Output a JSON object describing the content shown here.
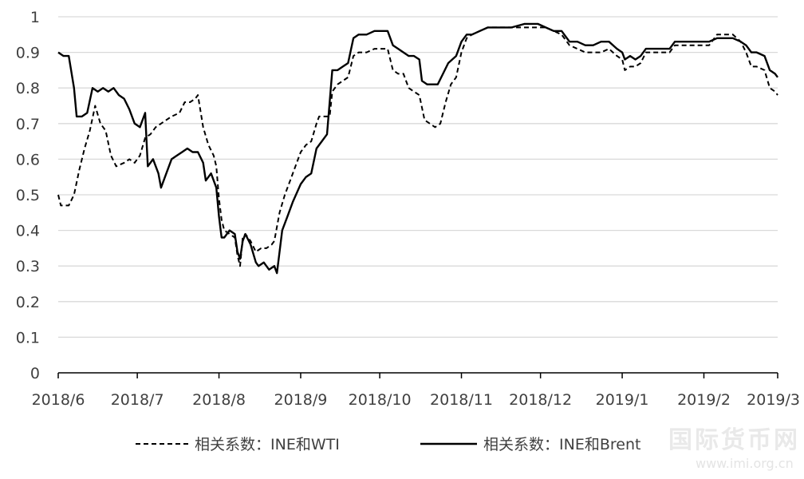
{
  "chart_data": {
    "type": "line",
    "title": "",
    "xlabel": "",
    "ylabel": "",
    "ylim": [
      0,
      1
    ],
    "yticks": [
      "0",
      "0.1",
      "0.2",
      "0.3",
      "0.4",
      "0.5",
      "0.6",
      "0.7",
      "0.8",
      "0.9",
      "1"
    ],
    "xticks": [
      "2018/6",
      "2018/7",
      "2018/8",
      "2018/9",
      "2018/10",
      "2018/11",
      "2018/12",
      "2019/1",
      "2019/2",
      "2019/3"
    ],
    "grid": "horizontal",
    "legend_position": "bottom",
    "series": [
      {
        "name": "相关系数：INE和WTI",
        "style": "dashed",
        "color": "#000000",
        "points": [
          [
            "2018-06-01",
            0.5
          ],
          [
            "2018-06-02",
            0.47
          ],
          [
            "2018-06-05",
            0.47
          ],
          [
            "2018-06-07",
            0.5
          ],
          [
            "2018-06-09",
            0.57
          ],
          [
            "2018-06-11",
            0.63
          ],
          [
            "2018-06-13",
            0.68
          ],
          [
            "2018-06-15",
            0.75
          ],
          [
            "2018-06-17",
            0.7
          ],
          [
            "2018-06-19",
            0.68
          ],
          [
            "2018-06-21",
            0.61
          ],
          [
            "2018-06-23",
            0.58
          ],
          [
            "2018-06-26",
            0.59
          ],
          [
            "2018-06-28",
            0.6
          ],
          [
            "2018-06-30",
            0.59
          ],
          [
            "2018-07-02",
            0.61
          ],
          [
            "2018-07-04",
            0.66
          ],
          [
            "2018-07-06",
            0.67
          ],
          [
            "2018-07-08",
            0.69
          ],
          [
            "2018-07-10",
            0.7
          ],
          [
            "2018-07-12",
            0.71
          ],
          [
            "2018-07-14",
            0.72
          ],
          [
            "2018-07-17",
            0.73
          ],
          [
            "2018-07-19",
            0.76
          ],
          [
            "2018-07-21",
            0.76
          ],
          [
            "2018-07-23",
            0.77
          ],
          [
            "2018-07-24",
            0.78
          ],
          [
            "2018-07-26",
            0.69
          ],
          [
            "2018-07-28",
            0.64
          ],
          [
            "2018-07-30",
            0.61
          ],
          [
            "2018-07-31",
            0.58
          ],
          [
            "2018-08-01",
            0.49
          ],
          [
            "2018-08-02",
            0.43
          ],
          [
            "2018-08-03",
            0.4
          ],
          [
            "2018-08-05",
            0.39
          ],
          [
            "2018-08-07",
            0.38
          ],
          [
            "2018-08-08",
            0.33
          ],
          [
            "2018-08-09",
            0.3
          ],
          [
            "2018-08-10",
            0.38
          ],
          [
            "2018-08-11",
            0.39
          ],
          [
            "2018-08-13",
            0.37
          ],
          [
            "2018-08-15",
            0.34
          ],
          [
            "2018-08-17",
            0.35
          ],
          [
            "2018-08-19",
            0.35
          ],
          [
            "2018-08-21",
            0.36
          ],
          [
            "2018-08-22",
            0.37
          ],
          [
            "2018-08-24",
            0.45
          ],
          [
            "2018-08-26",
            0.5
          ],
          [
            "2018-08-28",
            0.54
          ],
          [
            "2018-08-30",
            0.58
          ],
          [
            "2018-09-01",
            0.62
          ],
          [
            "2018-09-03",
            0.64
          ],
          [
            "2018-09-05",
            0.65
          ],
          [
            "2018-09-07",
            0.7
          ],
          [
            "2018-09-08",
            0.72
          ],
          [
            "2018-09-10",
            0.72
          ],
          [
            "2018-09-12",
            0.72
          ],
          [
            "2018-09-13",
            0.79
          ],
          [
            "2018-09-15",
            0.81
          ],
          [
            "2018-09-17",
            0.82
          ],
          [
            "2018-09-19",
            0.83
          ],
          [
            "2018-09-21",
            0.89
          ],
          [
            "2018-09-23",
            0.9
          ],
          [
            "2018-09-26",
            0.9
          ],
          [
            "2018-09-29",
            0.91
          ],
          [
            "2018-10-02",
            0.91
          ],
          [
            "2018-10-04",
            0.91
          ],
          [
            "2018-10-06",
            0.85
          ],
          [
            "2018-10-08",
            0.84
          ],
          [
            "2018-10-10",
            0.84
          ],
          [
            "2018-10-12",
            0.8
          ],
          [
            "2018-10-14",
            0.79
          ],
          [
            "2018-10-16",
            0.78
          ],
          [
            "2018-10-18",
            0.71
          ],
          [
            "2018-10-20",
            0.7
          ],
          [
            "2018-10-22",
            0.69
          ],
          [
            "2018-10-24",
            0.7
          ],
          [
            "2018-10-26",
            0.76
          ],
          [
            "2018-10-28",
            0.81
          ],
          [
            "2018-10-30",
            0.83
          ],
          [
            "2018-11-01",
            0.9
          ],
          [
            "2018-11-03",
            0.94
          ],
          [
            "2018-11-05",
            0.95
          ],
          [
            "2018-11-08",
            0.96
          ],
          [
            "2018-11-11",
            0.97
          ],
          [
            "2018-11-15",
            0.97
          ],
          [
            "2018-11-20",
            0.97
          ],
          [
            "2018-11-25",
            0.97
          ],
          [
            "2018-11-30",
            0.97
          ],
          [
            "2018-12-03",
            0.97
          ],
          [
            "2018-12-06",
            0.96
          ],
          [
            "2018-12-09",
            0.95
          ],
          [
            "2018-12-12",
            0.92
          ],
          [
            "2018-12-15",
            0.91
          ],
          [
            "2018-12-18",
            0.9
          ],
          [
            "2018-12-21",
            0.9
          ],
          [
            "2018-12-24",
            0.9
          ],
          [
            "2018-12-27",
            0.91
          ],
          [
            "2018-12-30",
            0.89
          ],
          [
            "2019-01-01",
            0.88
          ],
          [
            "2019-01-02",
            0.85
          ],
          [
            "2019-01-04",
            0.86
          ],
          [
            "2019-01-06",
            0.86
          ],
          [
            "2019-01-08",
            0.87
          ],
          [
            "2019-01-10",
            0.9
          ],
          [
            "2019-01-13",
            0.9
          ],
          [
            "2019-01-16",
            0.9
          ],
          [
            "2019-01-19",
            0.9
          ],
          [
            "2019-01-21",
            0.92
          ],
          [
            "2019-01-24",
            0.92
          ],
          [
            "2019-01-27",
            0.92
          ],
          [
            "2019-01-30",
            0.92
          ],
          [
            "2019-02-03",
            0.92
          ],
          [
            "2019-02-06",
            0.95
          ],
          [
            "2019-02-09",
            0.95
          ],
          [
            "2019-02-12",
            0.95
          ],
          [
            "2019-02-15",
            0.93
          ],
          [
            "2019-02-17",
            0.9
          ],
          [
            "2019-02-19",
            0.86
          ],
          [
            "2019-02-21",
            0.86
          ],
          [
            "2019-02-24",
            0.85
          ],
          [
            "2019-02-26",
            0.8
          ],
          [
            "2019-02-28",
            0.79
          ],
          [
            "2019-03-01",
            0.78
          ]
        ]
      },
      {
        "name": "相关系数：INE和Brent",
        "style": "solid",
        "color": "#000000",
        "points": [
          [
            "2018-06-01",
            0.9
          ],
          [
            "2018-06-03",
            0.89
          ],
          [
            "2018-06-05",
            0.89
          ],
          [
            "2018-06-07",
            0.8
          ],
          [
            "2018-06-08",
            0.72
          ],
          [
            "2018-06-10",
            0.72
          ],
          [
            "2018-06-12",
            0.73
          ],
          [
            "2018-06-14",
            0.8
          ],
          [
            "2018-06-16",
            0.79
          ],
          [
            "2018-06-18",
            0.8
          ],
          [
            "2018-06-20",
            0.79
          ],
          [
            "2018-06-22",
            0.8
          ],
          [
            "2018-06-24",
            0.78
          ],
          [
            "2018-06-26",
            0.77
          ],
          [
            "2018-06-28",
            0.74
          ],
          [
            "2018-06-30",
            0.7
          ],
          [
            "2018-07-02",
            0.69
          ],
          [
            "2018-07-04",
            0.73
          ],
          [
            "2018-07-05",
            0.58
          ],
          [
            "2018-07-07",
            0.6
          ],
          [
            "2018-07-09",
            0.56
          ],
          [
            "2018-07-10",
            0.52
          ],
          [
            "2018-07-12",
            0.56
          ],
          [
            "2018-07-14",
            0.6
          ],
          [
            "2018-07-16",
            0.61
          ],
          [
            "2018-07-18",
            0.62
          ],
          [
            "2018-07-20",
            0.63
          ],
          [
            "2018-07-22",
            0.62
          ],
          [
            "2018-07-24",
            0.62
          ],
          [
            "2018-07-26",
            0.59
          ],
          [
            "2018-07-27",
            0.54
          ],
          [
            "2018-07-29",
            0.56
          ],
          [
            "2018-07-31",
            0.52
          ],
          [
            "2018-08-01",
            0.44
          ],
          [
            "2018-08-02",
            0.38
          ],
          [
            "2018-08-03",
            0.38
          ],
          [
            "2018-08-05",
            0.4
          ],
          [
            "2018-08-07",
            0.39
          ],
          [
            "2018-08-08",
            0.34
          ],
          [
            "2018-08-09",
            0.32
          ],
          [
            "2018-08-10",
            0.37
          ],
          [
            "2018-08-11",
            0.39
          ],
          [
            "2018-08-13",
            0.36
          ],
          [
            "2018-08-15",
            0.31
          ],
          [
            "2018-08-16",
            0.3
          ],
          [
            "2018-08-18",
            0.31
          ],
          [
            "2018-08-20",
            0.29
          ],
          [
            "2018-08-22",
            0.3
          ],
          [
            "2018-08-23",
            0.28
          ],
          [
            "2018-08-25",
            0.4
          ],
          [
            "2018-08-27",
            0.44
          ],
          [
            "2018-08-29",
            0.48
          ],
          [
            "2018-09-01",
            0.53
          ],
          [
            "2018-09-03",
            0.55
          ],
          [
            "2018-09-05",
            0.56
          ],
          [
            "2018-09-07",
            0.63
          ],
          [
            "2018-09-09",
            0.65
          ],
          [
            "2018-09-11",
            0.67
          ],
          [
            "2018-09-13",
            0.85
          ],
          [
            "2018-09-15",
            0.85
          ],
          [
            "2018-09-17",
            0.86
          ],
          [
            "2018-09-19",
            0.87
          ],
          [
            "2018-09-21",
            0.94
          ],
          [
            "2018-09-23",
            0.95
          ],
          [
            "2018-09-26",
            0.95
          ],
          [
            "2018-09-29",
            0.96
          ],
          [
            "2018-10-02",
            0.96
          ],
          [
            "2018-10-04",
            0.96
          ],
          [
            "2018-10-06",
            0.92
          ],
          [
            "2018-10-08",
            0.91
          ],
          [
            "2018-10-10",
            0.9
          ],
          [
            "2018-10-12",
            0.89
          ],
          [
            "2018-10-14",
            0.89
          ],
          [
            "2018-10-16",
            0.88
          ],
          [
            "2018-10-17",
            0.82
          ],
          [
            "2018-10-19",
            0.81
          ],
          [
            "2018-10-21",
            0.81
          ],
          [
            "2018-10-23",
            0.81
          ],
          [
            "2018-10-25",
            0.84
          ],
          [
            "2018-10-27",
            0.87
          ],
          [
            "2018-10-30",
            0.89
          ],
          [
            "2018-11-01",
            0.93
          ],
          [
            "2018-11-03",
            0.95
          ],
          [
            "2018-11-05",
            0.95
          ],
          [
            "2018-11-08",
            0.96
          ],
          [
            "2018-11-11",
            0.97
          ],
          [
            "2018-11-15",
            0.97
          ],
          [
            "2018-11-20",
            0.97
          ],
          [
            "2018-11-25",
            0.98
          ],
          [
            "2018-11-30",
            0.98
          ],
          [
            "2018-12-03",
            0.97
          ],
          [
            "2018-12-06",
            0.96
          ],
          [
            "2018-12-09",
            0.96
          ],
          [
            "2018-12-12",
            0.93
          ],
          [
            "2018-12-15",
            0.93
          ],
          [
            "2018-12-18",
            0.92
          ],
          [
            "2018-12-21",
            0.92
          ],
          [
            "2018-12-24",
            0.93
          ],
          [
            "2018-12-27",
            0.93
          ],
          [
            "2018-12-30",
            0.91
          ],
          [
            "2019-01-01",
            0.9
          ],
          [
            "2019-01-02",
            0.88
          ],
          [
            "2019-01-04",
            0.89
          ],
          [
            "2019-01-06",
            0.88
          ],
          [
            "2019-01-08",
            0.89
          ],
          [
            "2019-01-10",
            0.91
          ],
          [
            "2019-01-13",
            0.91
          ],
          [
            "2019-01-16",
            0.91
          ],
          [
            "2019-01-19",
            0.91
          ],
          [
            "2019-01-21",
            0.93
          ],
          [
            "2019-01-24",
            0.93
          ],
          [
            "2019-01-27",
            0.93
          ],
          [
            "2019-01-30",
            0.93
          ],
          [
            "2019-02-03",
            0.93
          ],
          [
            "2019-02-06",
            0.94
          ],
          [
            "2019-02-09",
            0.94
          ],
          [
            "2019-02-12",
            0.94
          ],
          [
            "2019-02-15",
            0.93
          ],
          [
            "2019-02-17",
            0.92
          ],
          [
            "2019-02-19",
            0.9
          ],
          [
            "2019-02-21",
            0.9
          ],
          [
            "2019-02-24",
            0.89
          ],
          [
            "2019-02-26",
            0.85
          ],
          [
            "2019-02-28",
            0.84
          ],
          [
            "2019-03-01",
            0.83
          ]
        ]
      }
    ]
  },
  "watermark": {
    "text": "国际货币网",
    "subtext": "www.imi.org.cn"
  }
}
